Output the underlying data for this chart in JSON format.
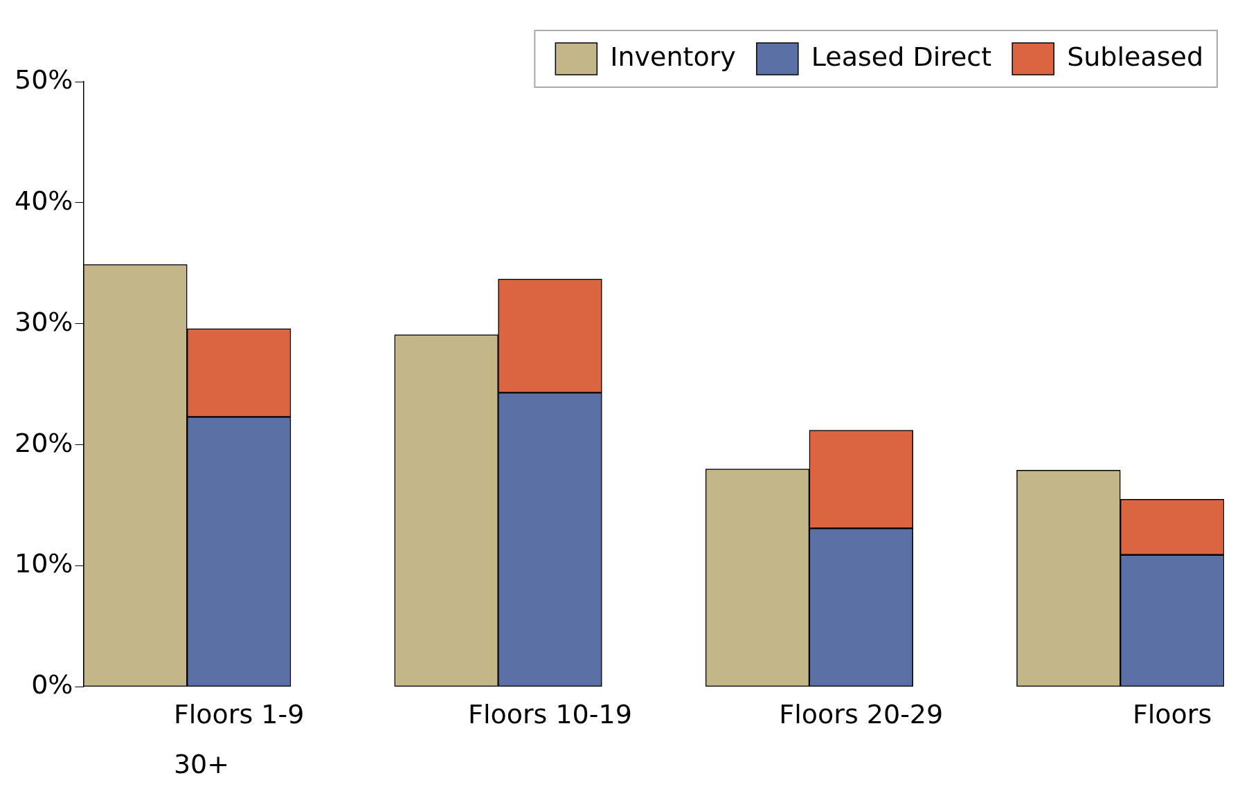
{
  "chart_data": {
    "type": "bar",
    "stacked": true,
    "categories": [
      null,
      "Floors 1-9",
      null,
      null,
      "Floors 10-19",
      null,
      null,
      "Floors 20-29",
      null,
      null,
      "Floors"
    ],
    "series": [
      {
        "name": "Inventory",
        "color": "#c3b78a",
        "values": [
          34.9,
          null,
          null,
          29.1,
          null,
          null,
          18.0,
          null,
          null,
          17.9,
          null
        ]
      },
      {
        "name": "Leased Direct",
        "color": "#5b71a5",
        "values": [
          null,
          22.3,
          null,
          null,
          24.3,
          null,
          null,
          13.1,
          null,
          null,
          10.9
        ]
      },
      {
        "name": "Subleased",
        "color": "#db6441",
        "values": [
          null,
          7.3,
          null,
          null,
          9.4,
          null,
          null,
          8.1,
          null,
          null,
          4.6
        ]
      }
    ],
    "ylim": [
      0,
      50
    ],
    "yticks": [
      {
        "value": 0,
        "label": "0%"
      },
      {
        "value": 10,
        "label": "10%"
      },
      {
        "value": 20,
        "label": "20%"
      },
      {
        "value": 30,
        "label": "30%"
      },
      {
        "value": 40,
        "label": "40%"
      },
      {
        "value": 50,
        "label": "50%"
      }
    ],
    "grid": false,
    "legend": "top right",
    "annotations": [
      "30+"
    ]
  }
}
